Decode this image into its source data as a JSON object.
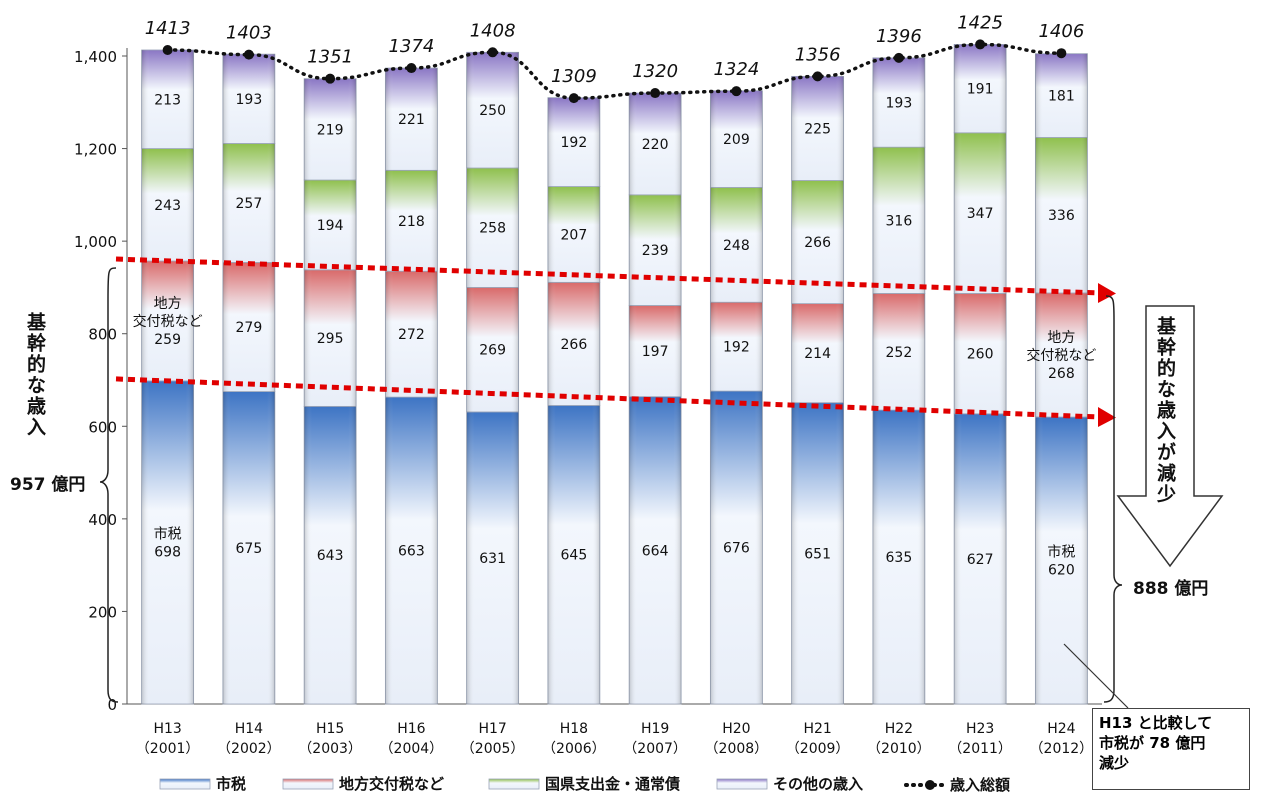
{
  "chart_data": {
    "type": "bar",
    "stacked": true,
    "categories": [
      "H13",
      "H14",
      "H15",
      "H16",
      "H17",
      "H18",
      "H19",
      "H20",
      "H21",
      "H22",
      "H23",
      "H24"
    ],
    "years": [
      "（2001）",
      "（2002）",
      "（2003）",
      "（2004）",
      "（2005）",
      "（2006）",
      "（2007）",
      "（2008）",
      "（2009）",
      "（2010）",
      "（2011）",
      "（2012）"
    ],
    "series": [
      {
        "name": "市税",
        "values": [
          698,
          675,
          643,
          663,
          631,
          645,
          664,
          676,
          651,
          635,
          627,
          620
        ],
        "color": "#5b8fd6"
      },
      {
        "name": "地方交付税など",
        "values": [
          259,
          279,
          295,
          272,
          269,
          266,
          197,
          192,
          214,
          252,
          260,
          268
        ],
        "color": "#e08a8a"
      },
      {
        "name": "国県支出金・通常債",
        "values": [
          243,
          257,
          194,
          218,
          258,
          207,
          239,
          248,
          266,
          316,
          347,
          336
        ],
        "color": "#a6cd6a"
      },
      {
        "name": "その他の歳入",
        "values": [
          213,
          193,
          219,
          221,
          250,
          192,
          220,
          209,
          225,
          193,
          191,
          181
        ],
        "color": "#a08fcf"
      }
    ],
    "total": {
      "name": "歳入総額",
      "values": [
        1413,
        1403,
        1351,
        1374,
        1408,
        1309,
        1320,
        1324,
        1356,
        1396,
        1425,
        1406
      ]
    },
    "ylim": [
      0,
      1400
    ],
    "yticks": [
      {
        "v": 0,
        "label": "0"
      },
      {
        "v": 200,
        "label": "200"
      },
      {
        "v": 400,
        "label": "400"
      },
      {
        "v": 600,
        "label": "600"
      },
      {
        "v": 800,
        "label": "800"
      },
      {
        "v": 1000,
        "label": "1,000"
      },
      {
        "v": 1200,
        "label": "1,200"
      },
      {
        "v": 1400,
        "label": "1,400"
      }
    ],
    "special_labels": {
      "first_tax": [
        "市税",
        "698"
      ],
      "first_kofu": [
        "地方",
        "交付税など",
        "259"
      ],
      "last_tax": [
        "市税",
        "620"
      ],
      "last_kofu": [
        "地方",
        "交付税など",
        "268"
      ]
    },
    "legend_placement": "bottom"
  },
  "annotations": {
    "left_vertical": "基幹的な歳入",
    "left_amount": "957 億円",
    "right_vertical": "基幹的な歳入が減少",
    "right_amount": "888 億円",
    "note_lines": [
      "H13 と比較して",
      "市税が 78 億円",
      "減少"
    ]
  }
}
